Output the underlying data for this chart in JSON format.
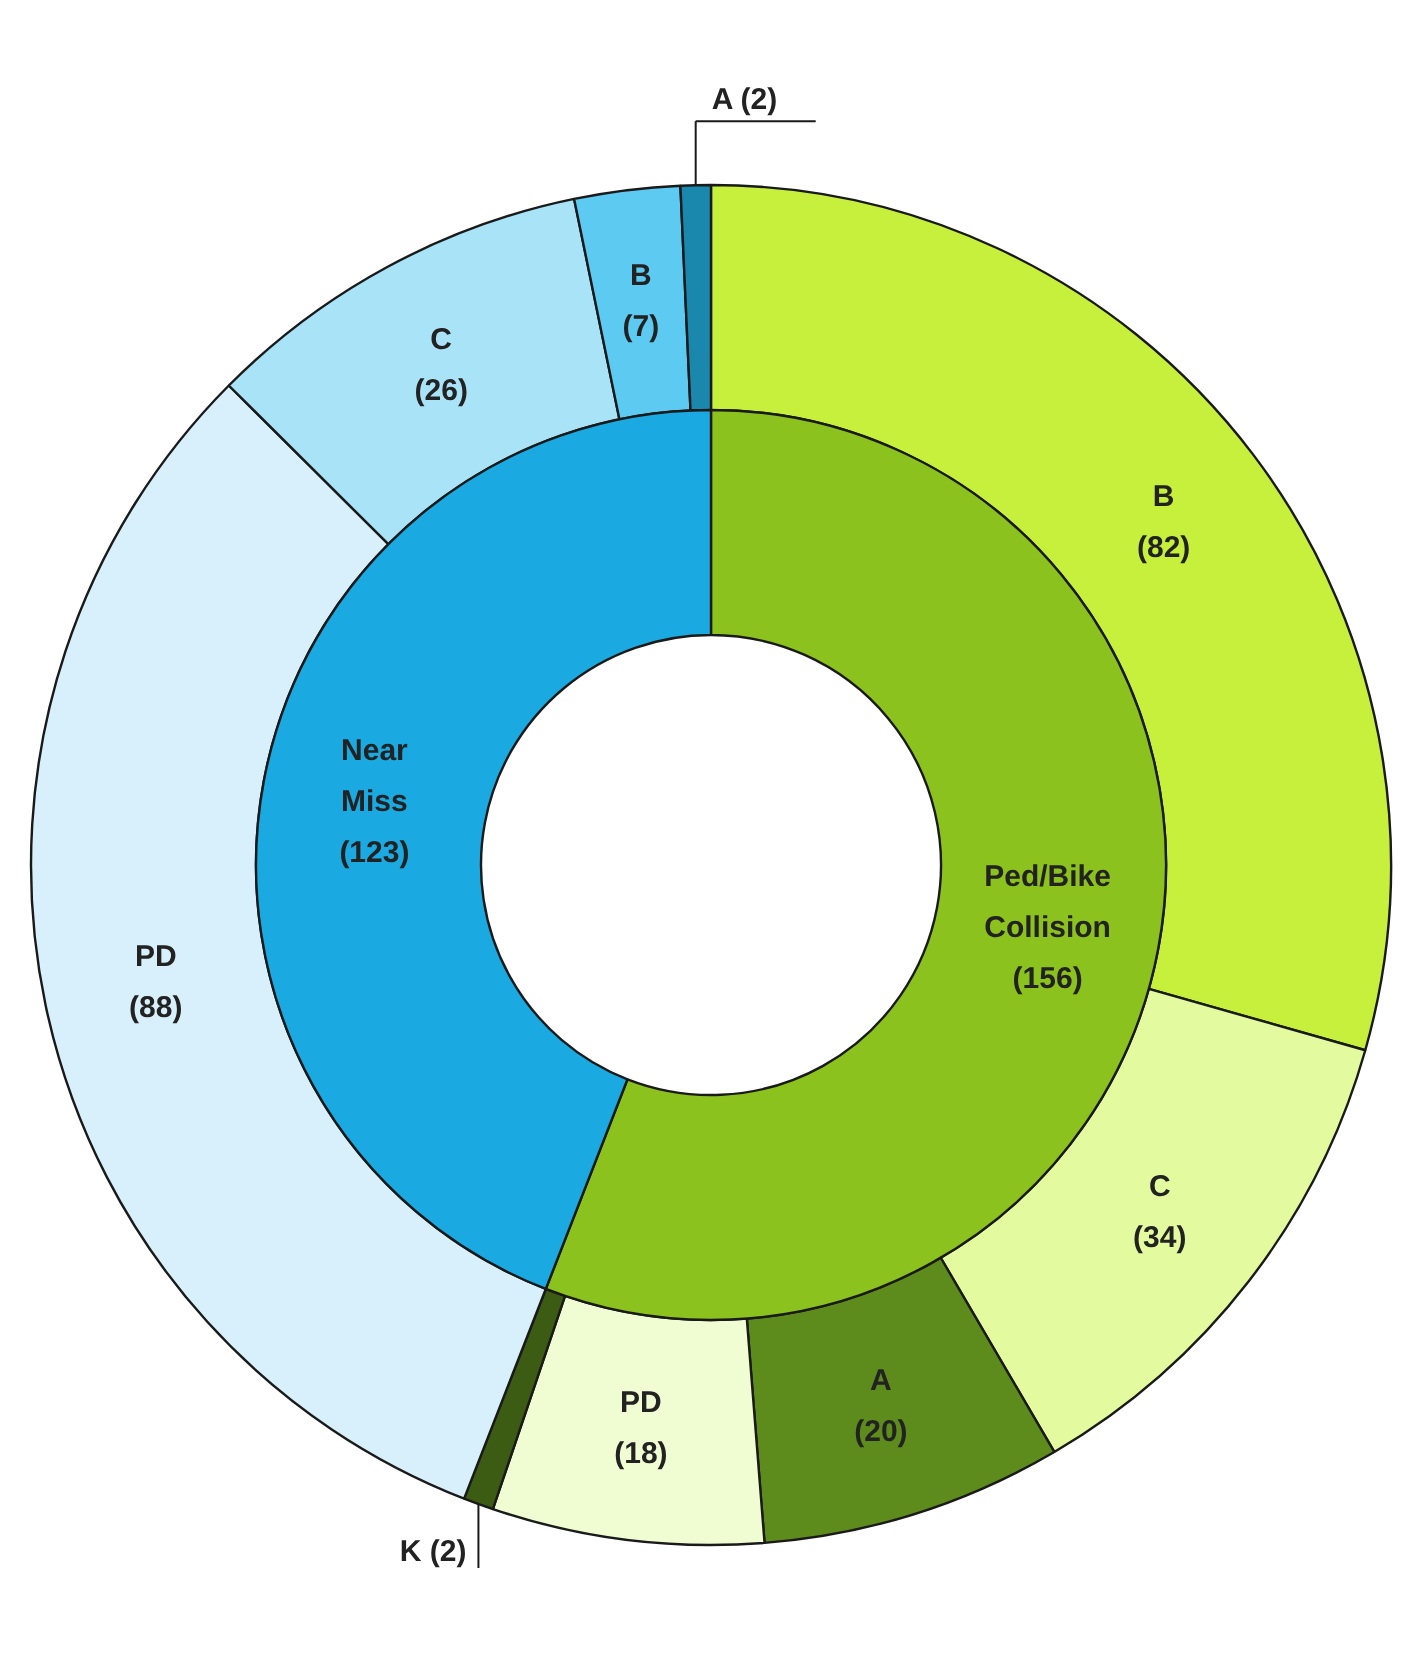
{
  "chart_data": {
    "type": "donut",
    "categories": [
      "B",
      "C",
      "A",
      "PD",
      "K",
      "PD",
      "C",
      "B",
      "A"
    ],
    "series": [
      {
        "values": [
          82,
          34,
          20,
          18,
          2,
          88,
          26,
          7,
          2
        ],
        "colors": [
          "#c6f03c",
          "#e3fa9e",
          "#5e8c1c",
          "#f0fcd2",
          "#3b5c12",
          "#d8f0fb",
          "#a9e3f8",
          "#5dcbf1",
          "#1a87ad"
        ],
        "value_labels": [
          "(82)",
          "(34)",
          "(20)",
          "(18)",
          "(2)",
          "(88)",
          "(26)",
          "(7)",
          "(2)"
        ]
      },
      {
        "values": [
          156,
          null,
          null,
          null,
          null,
          123,
          null,
          null,
          null
        ],
        "colors": [
          "#8cc21e",
          null,
          null,
          null,
          null,
          "#1ba9e1",
          null,
          null,
          null
        ],
        "value_labels": [
          "(156)",
          null,
          null,
          null,
          null,
          "(123)",
          null,
          null,
          null
        ]
      }
    ],
    "annotations": [
      "Ped/Bike Collision",
      "Near Miss"
    ]
  }
}
